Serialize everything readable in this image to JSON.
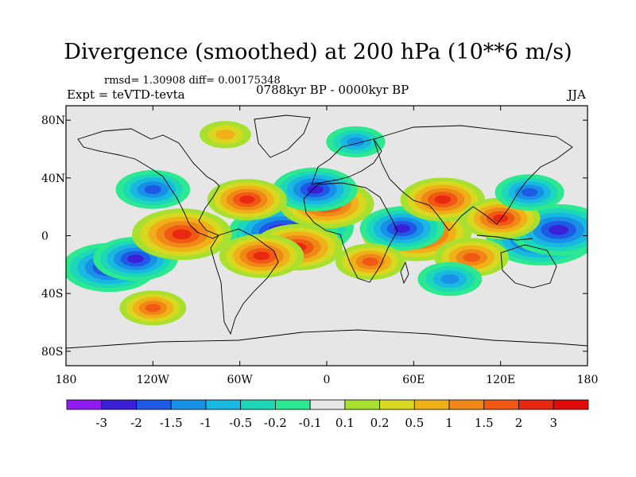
{
  "title": "Divergence (smoothed) at 200 hPa (10**6 m/s)",
  "stats": "rmsd= 1.30908 diff= 0.00175348",
  "experiment": "Expt = teVTD-tevta",
  "period": "0788kyr BP - 0000kyr BP",
  "season": "JJA",
  "axes": {
    "lat_ticks": [
      "80N",
      "40N",
      "0",
      "40S",
      "80S"
    ],
    "lat_values": [
      80,
      40,
      0,
      -40,
      -80
    ],
    "lon_ticks": [
      "180",
      "120W",
      "60W",
      "0",
      "60E",
      "120E",
      "180"
    ],
    "lon_values": [
      -180,
      -120,
      -60,
      0,
      60,
      120,
      180
    ],
    "lat_range": [
      -90,
      90
    ],
    "lon_range": [
      -180,
      180
    ]
  },
  "colorbar": {
    "labels": [
      "-3",
      "-2",
      "-1.5",
      "-1",
      "-0.5",
      "-0.2",
      "-0.1",
      "0.1",
      "0.2",
      "0.5",
      "1",
      "1.5",
      "2",
      "3"
    ],
    "colors": [
      "#8f1cf0",
      "#3b20d8",
      "#1e5ae6",
      "#1890e8",
      "#18b8e0",
      "#1cd8b8",
      "#2ce890",
      "#e6e6e6",
      "#a8e030",
      "#d8d820",
      "#f0b018",
      "#f08818",
      "#f05814",
      "#e82810",
      "#e00a0a"
    ]
  },
  "chart_data": {
    "type": "heatmap",
    "title": "Divergence (smoothed) at 200 hPa (10**6 m/s)",
    "projection": "cylindrical-equidistant",
    "xlim": [
      -180,
      180
    ],
    "ylim": [
      -90,
      90
    ],
    "xticks": [
      -180,
      -120,
      -60,
      0,
      60,
      120,
      180
    ],
    "yticks": [
      -80,
      -40,
      0,
      40,
      80
    ],
    "levels": [
      -3,
      -2,
      -1.5,
      -1,
      -0.5,
      -0.2,
      -0.1,
      0.1,
      0.2,
      0.5,
      1,
      1.5,
      2,
      3
    ],
    "features": [
      {
        "lon": -22,
        "lat": 6,
        "value": -3.5
      },
      {
        "lon": -30,
        "lat": 2,
        "value": -3.2
      },
      {
        "lon": 148,
        "lat": -1,
        "value": -3.2
      },
      {
        "lon": 160,
        "lat": 4,
        "value": -2.8
      },
      {
        "lon": -150,
        "lat": -22,
        "value": -2.6
      },
      {
        "lon": -132,
        "lat": -16,
        "value": -2.2
      },
      {
        "lon": 0,
        "lat": 22,
        "value": 2.6
      },
      {
        "lon": 62,
        "lat": 2,
        "value": 3.2
      },
      {
        "lon": 52,
        "lat": 5,
        "value": -2.2
      },
      {
        "lon": -100,
        "lat": 1,
        "value": 2.8
      },
      {
        "lon": -20,
        "lat": -8,
        "value": 2.4
      },
      {
        "lon": -45,
        "lat": -14,
        "value": 2.2
      },
      {
        "lon": 80,
        "lat": 25,
        "value": 2.2
      },
      {
        "lon": 120,
        "lat": 12,
        "value": 2.0
      },
      {
        "lon": -8,
        "lat": 32,
        "value": -2.2
      },
      {
        "lon": -55,
        "lat": 25,
        "value": 2.0
      },
      {
        "lon": -120,
        "lat": 32,
        "value": -1.8
      },
      {
        "lon": 100,
        "lat": -15,
        "value": 1.8
      },
      {
        "lon": 30,
        "lat": -18,
        "value": 1.6
      },
      {
        "lon": -120,
        "lat": -50,
        "value": 1.5
      },
      {
        "lon": 140,
        "lat": 30,
        "value": -1.6
      },
      {
        "lon": 85,
        "lat": -30,
        "value": -1.4
      },
      {
        "lon": 20,
        "lat": 65,
        "value": -1.2
      },
      {
        "lon": -70,
        "lat": 70,
        "value": 0.9
      }
    ]
  }
}
